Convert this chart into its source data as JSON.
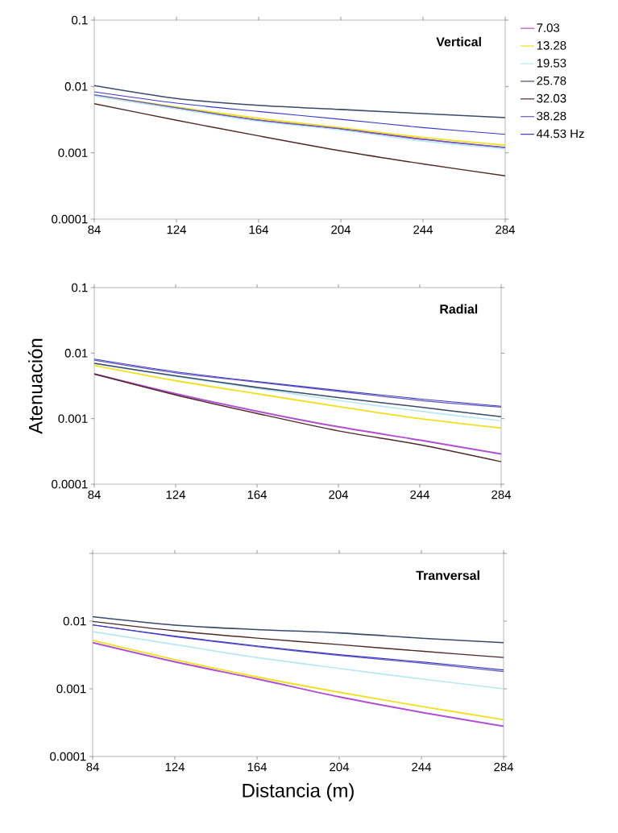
{
  "chart_data": [
    {
      "type": "line",
      "title": "Vertical",
      "x": [
        84,
        124,
        164,
        204,
        244,
        284
      ],
      "xlim": [
        84,
        284
      ],
      "xticks": [
        84,
        124,
        164,
        204,
        244,
        284
      ],
      "ylim": [
        0.0001,
        0.1
      ],
      "yticks": [
        0.0001,
        0.001,
        0.01,
        0.1
      ],
      "log": "y",
      "legend": "right",
      "grid": false,
      "marker": "none",
      "line_style": "solid",
      "series": [
        {
          "name": "7.03",
          "color": "#b050d0",
          "values": [
            0.0073,
            0.0047,
            0.0031,
            0.0023,
            0.0016,
            0.0012
          ]
        },
        {
          "name": "13.28",
          "color": "#f0e020",
          "values": [
            0.0073,
            0.0049,
            0.0033,
            0.0024,
            0.0017,
            0.0013
          ]
        },
        {
          "name": "19.53",
          "color": "#b8e8f0",
          "values": [
            0.0072,
            0.0046,
            0.003,
            0.0022,
            0.0015,
            0.00115
          ]
        },
        {
          "name": "25.78",
          "color": "#3a4a68",
          "values": [
            0.0103,
            0.0066,
            0.0052,
            0.0045,
            0.0039,
            0.0034
          ]
        },
        {
          "name": "32.03",
          "color": "#502828",
          "values": [
            0.0055,
            0.0031,
            0.0018,
            0.00107,
            0.00068,
            0.00045
          ]
        },
        {
          "name": "38.28",
          "color": "#6a58b8",
          "values": [
            0.0075,
            0.0048,
            0.0031,
            0.0023,
            0.0016,
            0.0012
          ]
        },
        {
          "name": "44.53 Hz",
          "color": "#3838c8",
          "values": [
            0.0083,
            0.0056,
            0.0042,
            0.0032,
            0.0024,
            0.0019
          ]
        }
      ]
    },
    {
      "type": "line",
      "title": "Radial",
      "ylabel": "Atenuación",
      "x": [
        84,
        124,
        164,
        204,
        244,
        284
      ],
      "xlim": [
        84,
        284
      ],
      "xticks": [
        84,
        124,
        164,
        204,
        244,
        284
      ],
      "ylim": [
        0.0001,
        0.1
      ],
      "yticks": [
        0.0001,
        0.001,
        0.01,
        0.1
      ],
      "log": "y",
      "grid": false,
      "marker": "none",
      "line_style": "solid",
      "series": [
        {
          "color": "#b050d0",
          "values": [
            0.0048,
            0.0024,
            0.0013,
            0.00075,
            0.00047,
            0.00029
          ]
        },
        {
          "color": "#f0e020",
          "values": [
            0.0065,
            0.0038,
            0.0024,
            0.00153,
            0.001,
            0.00072
          ]
        },
        {
          "color": "#b8e8f0",
          "values": [
            0.007,
            0.0044,
            0.0029,
            0.0019,
            0.0013,
            0.00093
          ]
        },
        {
          "color": "#3a4a68",
          "values": [
            0.007,
            0.0045,
            0.003,
            0.0021,
            0.0015,
            0.00107
          ]
        },
        {
          "color": "#502828",
          "values": [
            0.0048,
            0.0023,
            0.0012,
            0.00065,
            0.0004,
            0.00022
          ]
        },
        {
          "color": "#6a58b8",
          "values": [
            0.0078,
            0.005,
            0.0036,
            0.0026,
            0.0019,
            0.0015
          ]
        },
        {
          "color": "#3838c8",
          "values": [
            0.0081,
            0.0052,
            0.0037,
            0.0027,
            0.002,
            0.00155
          ]
        }
      ]
    },
    {
      "type": "line",
      "title": "Tranversal",
      "xlabel": "Distancia (m)",
      "x": [
        84,
        124,
        164,
        204,
        244,
        284
      ],
      "xlim": [
        84,
        284
      ],
      "xticks": [
        84,
        124,
        164,
        204,
        244,
        284
      ],
      "ylim": [
        0.0001,
        0.1
      ],
      "yticks": [
        0.0001,
        0.001,
        0.01,
        {
          "value": 0.1,
          "label": null
        }
      ],
      "log": "y",
      "grid": false,
      "marker": "none",
      "line_style": "solid",
      "series": [
        {
          "color": "#b050d0",
          "values": [
            0.0048,
            0.0025,
            0.0014,
            0.00076,
            0.00045,
            0.00028
          ]
        },
        {
          "color": "#f0e020",
          "values": [
            0.0052,
            0.0027,
            0.0015,
            0.00089,
            0.00055,
            0.00035
          ]
        },
        {
          "color": "#b8e8f0",
          "values": [
            0.007,
            0.0045,
            0.0029,
            0.002,
            0.0014,
            0.001
          ]
        },
        {
          "color": "#3a4a68",
          "values": [
            0.0116,
            0.0087,
            0.0075,
            0.0067,
            0.0056,
            0.0048
          ]
        },
        {
          "color": "#502828",
          "values": [
            0.0099,
            0.0072,
            0.0056,
            0.0045,
            0.0036,
            0.0029
          ]
        },
        {
          "color": "#6a58b8",
          "values": [
            0.0088,
            0.0059,
            0.0042,
            0.0031,
            0.0024,
            0.0018
          ]
        },
        {
          "color": "#3838c8",
          "values": [
            0.0088,
            0.006,
            0.0043,
            0.0032,
            0.0025,
            0.0019
          ]
        }
      ]
    }
  ]
}
